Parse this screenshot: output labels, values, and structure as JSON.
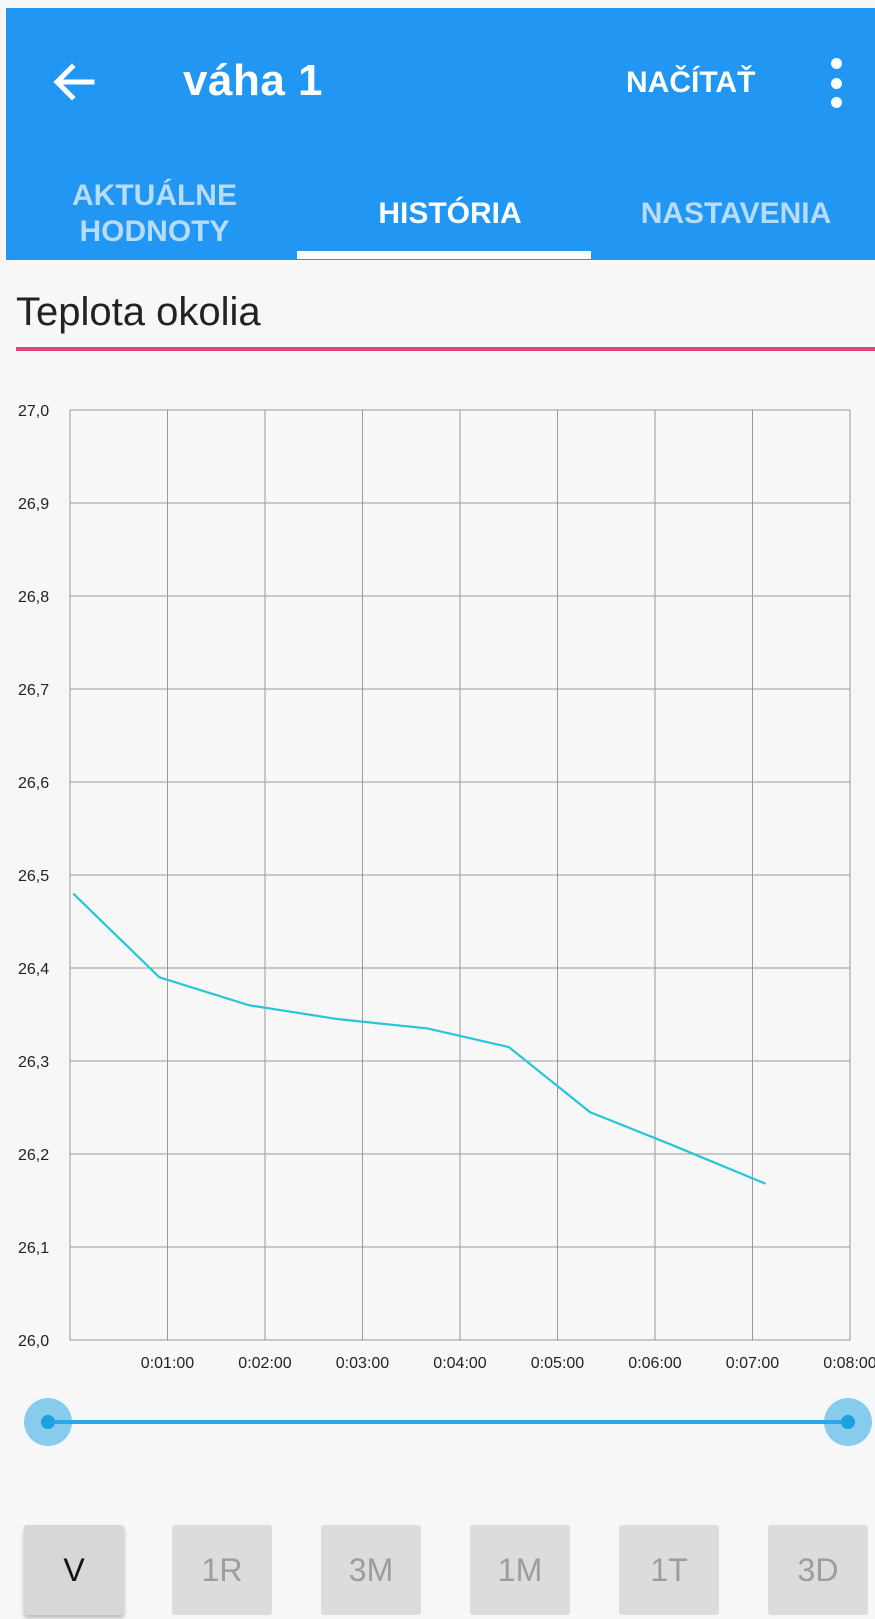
{
  "appbar": {
    "title": "váha 1",
    "back_icon": "arrow-left-icon",
    "action_label": "NAČÍTAŤ",
    "menu_icon": "more-vert-icon",
    "color": "#2196F3"
  },
  "tabs": [
    {
      "label_line1": "AKTUÁLNE",
      "label_line2": "HODNOTY",
      "active": false
    },
    {
      "label_line1": "HISTÓRIA",
      "label_line2": "",
      "active": true
    },
    {
      "label_line1": "NASTAVENIA",
      "label_line2": "",
      "active": false
    }
  ],
  "section": {
    "title": "Teplota okolia",
    "accent_color": "#E2457C"
  },
  "chart_data": {
    "type": "line",
    "title": "",
    "xlabel": "",
    "ylabel": "",
    "ylim": [
      26.0,
      27.0
    ],
    "xlim": [
      "0:00:00",
      "0:08:00"
    ],
    "y_ticks": [
      "26,0",
      "26,1",
      "26,2",
      "26,3",
      "26,4",
      "26,5",
      "26,6",
      "26,7",
      "26,8",
      "26,9",
      "27,0"
    ],
    "x_ticks": [
      "0:01:00",
      "0:02:00",
      "0:03:00",
      "0:04:00",
      "0:05:00",
      "0:06:00",
      "0:07:00",
      "0:08:00"
    ],
    "grid": true,
    "line_color": "#26C6DA",
    "series": [
      {
        "x": [
          "0:00:02",
          "0:00:55",
          "0:01:50",
          "0:02:45",
          "0:03:40",
          "0:04:30",
          "0:05:20",
          "0:06:10",
          "0:07:08"
        ],
        "values": [
          26.48,
          26.39,
          26.36,
          26.345,
          26.335,
          26.315,
          26.245,
          26.21,
          26.168
        ]
      }
    ]
  },
  "range_slider": {
    "min": 0.0,
    "max": 1.0,
    "low": 0.0,
    "high": 1.0,
    "color": "#1FA0DE"
  },
  "range_buttons": [
    {
      "label": "V",
      "selected": true
    },
    {
      "label": "1R",
      "selected": false
    },
    {
      "label": "3M",
      "selected": false
    },
    {
      "label": "1M",
      "selected": false
    },
    {
      "label": "1T",
      "selected": false
    },
    {
      "label": "3D",
      "selected": false
    }
  ]
}
